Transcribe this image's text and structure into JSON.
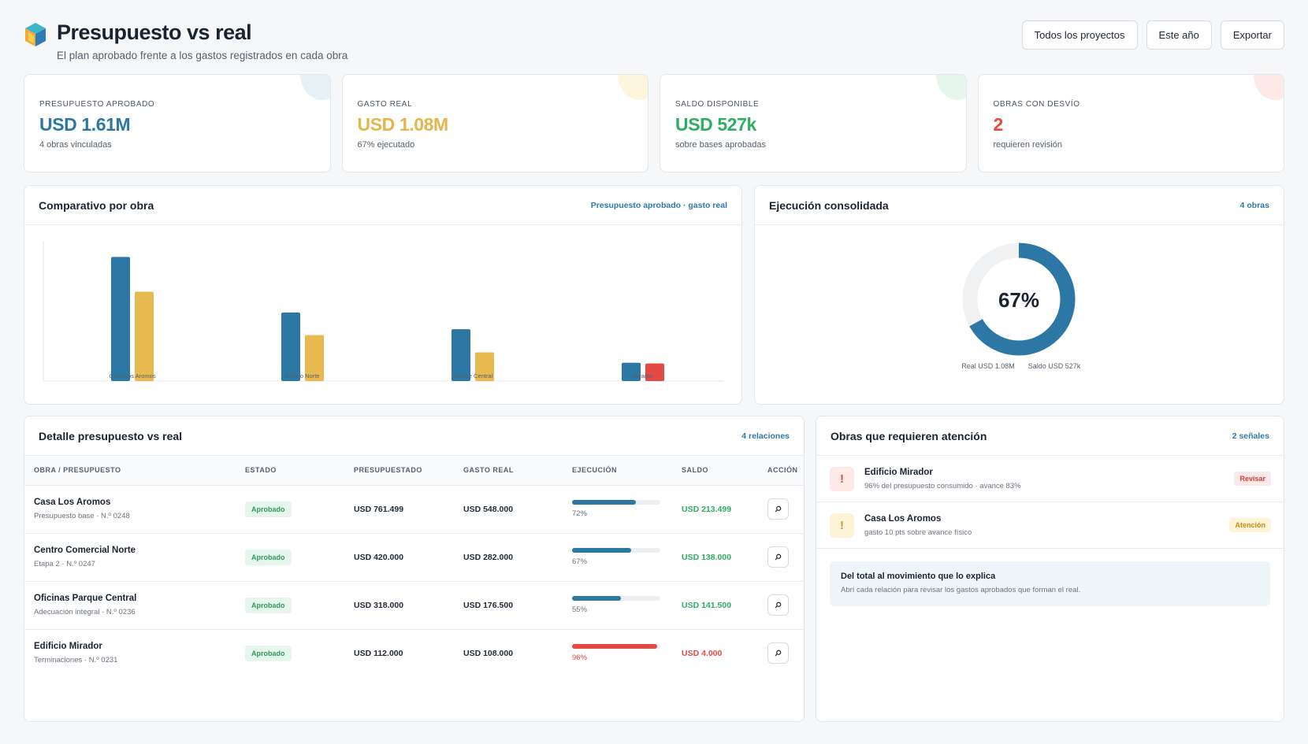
{
  "header": {
    "title": "Presupuesto vs real",
    "subtitle": "El plan aprobado frente a los gastos registrados en cada obra",
    "buttons": [
      "Todos los proyectos",
      "Este año",
      "Exportar"
    ]
  },
  "colors": {
    "blue": "#2d77a4",
    "yellow": "#e8b94f",
    "green": "#2fae63",
    "red": "#e34a44"
  },
  "kpis": [
    {
      "label": "PRESUPUESTO APROBADO",
      "value": "USD 1.61M",
      "note": "4 obras vinculadas",
      "color": "#2d77a4",
      "blob": "#e6f1f6"
    },
    {
      "label": "GASTO REAL",
      "value": "USD 1.08M",
      "note": "67% ejecutado",
      "color": "#e4b54a",
      "blob": "#fdf5de"
    },
    {
      "label": "SALDO DISPONIBLE",
      "value": "USD 527k",
      "note": "sobre bases aprobadas",
      "color": "#2fae63",
      "blob": "#e6f6ec"
    },
    {
      "label": "OBRAS CON DESVÍO",
      "value": "2",
      "note": "requieren revisión",
      "color": "#e34a44",
      "blob": "#fde9e7"
    }
  ],
  "comparativo": {
    "title": "Comparativo por obra",
    "meta": "Presupuesto aprobado · gasto real"
  },
  "chart_data": {
    "type": "bar",
    "categories": [
      "Casa Los Aromos",
      "Centro Norte",
      "Parque Central",
      "Mirador"
    ],
    "series": [
      {
        "values": [
          761499,
          420000,
          318000,
          112000
        ]
      },
      {
        "values": [
          548000,
          282000,
          176500,
          108000
        ]
      }
    ],
    "ylim": [
      0,
      850000
    ],
    "title": "",
    "xlabel": "",
    "ylabel": ""
  },
  "ejecucion": {
    "title": "Ejecución consolidada",
    "meta": "4 obras",
    "percent_label": "67%",
    "fraction": 0.67,
    "legend_real": "Real USD 1.08M",
    "legend_saldo": "Saldo USD 527k"
  },
  "detalle": {
    "title": "Detalle presupuesto vs real",
    "meta": "4 relaciones",
    "columns": [
      "OBRA / PRESUPUESTO",
      "ESTADO",
      "PRESUPUESTADO",
      "GASTO REAL",
      "EJECUCIÓN",
      "SALDO",
      "ACCIÓN"
    ],
    "rows": [
      {
        "name": "Casa Los Aromos",
        "sub": "Presupuesto base · N.º 0248",
        "estado": "Aprobado",
        "presupuestado": "USD 761.499",
        "gasto": "USD 548.000",
        "ejec": 0.72,
        "ejec_label": "72%",
        "saldo": "USD 213.499",
        "alert": false
      },
      {
        "name": "Centro Comercial Norte",
        "sub": "Etapa 2 · N.º 0247",
        "estado": "Aprobado",
        "presupuestado": "USD 420.000",
        "gasto": "USD 282.000",
        "ejec": 0.67,
        "ejec_label": "67%",
        "saldo": "USD 138.000",
        "alert": false
      },
      {
        "name": "Oficinas Parque Central",
        "sub": "Adecuación integral · N.º 0236",
        "estado": "Aprobado",
        "presupuestado": "USD 318.000",
        "gasto": "USD 176.500",
        "ejec": 0.55,
        "ejec_label": "55%",
        "saldo": "USD 141.500",
        "alert": false
      },
      {
        "name": "Edificio Mirador",
        "sub": "Terminaciones · N.º 0231",
        "estado": "Aprobado",
        "presupuestado": "USD 112.000",
        "gasto": "USD 108.000",
        "ejec": 0.96,
        "ejec_label": "96%",
        "saldo": "USD 4.000",
        "alert": true
      }
    ]
  },
  "atencion": {
    "title": "Obras que requieren atención",
    "meta": "2 señales",
    "items": [
      {
        "name": "Edificio Mirador",
        "sub": "96% del presupuesto consumido · avance 83%",
        "tag": "Revisar",
        "icon": "!",
        "tone": "red"
      },
      {
        "name": "Casa Los Aromos",
        "sub": "gasto 10 pts sobre avance físico",
        "tag": "Atención",
        "icon": "!",
        "tone": "yellow"
      }
    ],
    "note_title": "Del total al movimiento que lo explica",
    "note_text": "Abrí cada relación para revisar los gastos aprobados que forman el real."
  }
}
